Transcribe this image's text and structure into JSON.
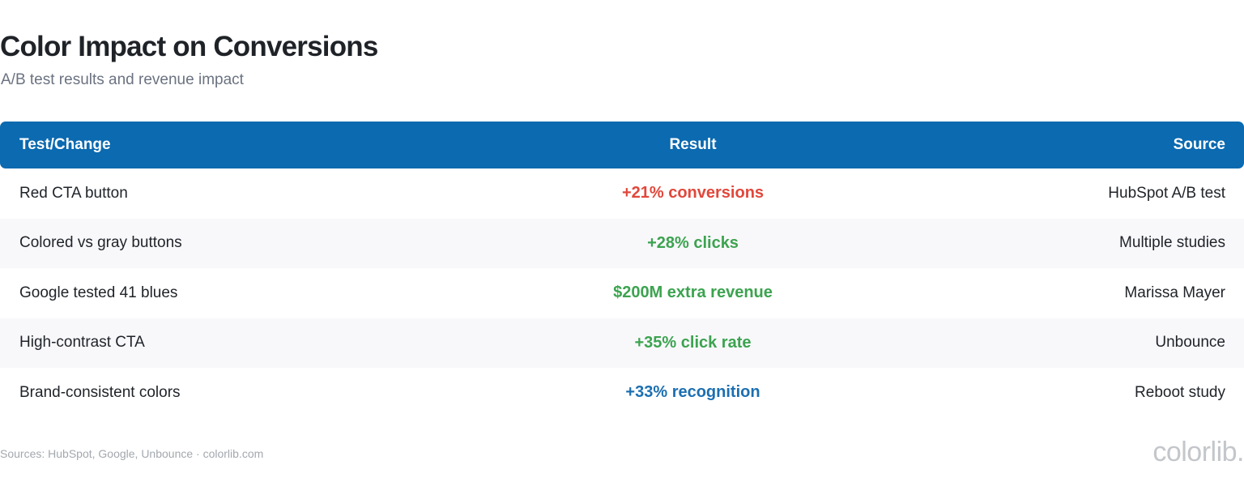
{
  "header": {
    "title": "Color Impact on Conversions",
    "subtitle": "A/B test results and revenue impact"
  },
  "table": {
    "columns": [
      "Test/Change",
      "Result",
      "Source"
    ],
    "rows": [
      {
        "test": "Red CTA button",
        "result": "+21% conversions",
        "source": "HubSpot A/B test",
        "result_color": "#e1473b"
      },
      {
        "test": "Colored vs gray buttons",
        "result": "+28% clicks",
        "source": "Multiple studies",
        "result_color": "#3ca34f"
      },
      {
        "test": "Google tested 41 blues",
        "result": "$200M extra revenue",
        "source": "Marissa Mayer",
        "result_color": "#3ca34f"
      },
      {
        "test": "High-contrast CTA",
        "result": "+35% click rate",
        "source": "Unbounce",
        "result_color": "#3ca34f"
      },
      {
        "test": "Brand-consistent colors",
        "result": "+33% recognition",
        "source": "Reboot study",
        "result_color": "#1c6fb1"
      }
    ],
    "header_color": "#0b6ab0"
  },
  "footer": {
    "sources": "Sources: HubSpot, Google, Unbounce · colorlib.com",
    "brand": "colorlib."
  }
}
